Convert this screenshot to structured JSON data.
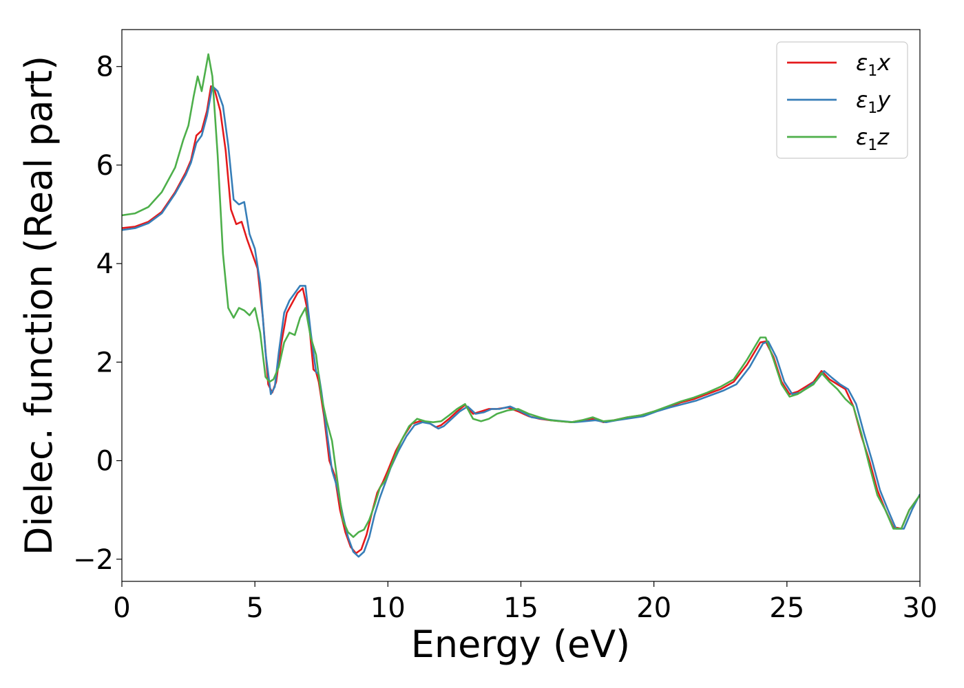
{
  "chart_data": {
    "type": "line",
    "xlabel": "Energy (eV)",
    "ylabel": "Dielec. function (Real part)",
    "xlim": [
      0,
      30
    ],
    "ylim": [
      -2.45,
      8.75
    ],
    "xticks": [
      0,
      5,
      10,
      15,
      20,
      25,
      30
    ],
    "xtick_labels": [
      "0",
      "5",
      "10",
      "15",
      "20",
      "25",
      "30"
    ],
    "yticks": [
      -2,
      0,
      2,
      4,
      6,
      8
    ],
    "ytick_labels": [
      "−2",
      "0",
      "2",
      "4",
      "6",
      "8"
    ],
    "grid": false,
    "legend_position": "top-right",
    "legend": [
      {
        "base": "ε",
        "sub": "1",
        "tail": "x"
      },
      {
        "base": "ε",
        "sub": "1",
        "tail": "y"
      },
      {
        "base": "ε",
        "sub": "1",
        "tail": "z"
      }
    ],
    "series": [
      {
        "name": "ε1x",
        "color": "#e41a1c",
        "x": [
          0,
          0.5,
          1,
          1.5,
          2,
          2.4,
          2.6,
          2.8,
          3.0,
          3.2,
          3.35,
          3.5,
          3.7,
          3.9,
          4.1,
          4.3,
          4.5,
          4.7,
          4.9,
          5.1,
          5.3,
          5.5,
          5.65,
          5.8,
          6.0,
          6.2,
          6.4,
          6.6,
          6.8,
          7.0,
          7.2,
          7.3,
          7.4,
          7.6,
          7.8,
          8.0,
          8.2,
          8.4,
          8.6,
          8.8,
          9.0,
          9.2,
          9.4,
          9.6,
          9.8,
          10.0,
          10.3,
          10.6,
          10.9,
          11.2,
          11.5,
          11.8,
          12.0,
          12.3,
          12.6,
          12.9,
          13.2,
          13.5,
          13.8,
          14.1,
          14.5,
          14.9,
          15.3,
          15.7,
          16.1,
          16.5,
          16.9,
          17.3,
          17.7,
          18.1,
          18.5,
          19.0,
          19.5,
          20.0,
          20.5,
          21.0,
          21.5,
          22.0,
          22.5,
          23.0,
          23.5,
          24.0,
          24.2,
          24.5,
          24.8,
          25.1,
          25.4,
          25.7,
          26.0,
          26.3,
          26.6,
          26.9,
          27.2,
          27.5,
          27.8,
          28.1,
          28.4,
          28.7,
          29.0,
          29.3,
          29.6,
          30.0
        ],
        "y": [
          4.72,
          4.75,
          4.85,
          5.05,
          5.45,
          5.85,
          6.1,
          6.6,
          6.7,
          7.1,
          7.6,
          7.5,
          7.1,
          6.3,
          5.1,
          4.8,
          4.85,
          4.5,
          4.2,
          3.9,
          2.9,
          1.55,
          1.38,
          1.6,
          2.4,
          3.0,
          3.2,
          3.4,
          3.5,
          3.0,
          1.85,
          1.8,
          1.6,
          0.9,
          0.0,
          -0.3,
          -1.0,
          -1.45,
          -1.75,
          -1.88,
          -1.8,
          -1.5,
          -1.05,
          -0.65,
          -0.45,
          -0.2,
          0.2,
          0.5,
          0.75,
          0.8,
          0.78,
          0.68,
          0.72,
          0.85,
          1.0,
          1.13,
          0.95,
          1.0,
          1.05,
          1.05,
          1.08,
          1.0,
          0.9,
          0.85,
          0.82,
          0.8,
          0.78,
          0.82,
          0.85,
          0.78,
          0.82,
          0.88,
          0.92,
          1.0,
          1.08,
          1.18,
          1.25,
          1.35,
          1.45,
          1.6,
          1.95,
          2.4,
          2.42,
          2.1,
          1.6,
          1.35,
          1.4,
          1.5,
          1.6,
          1.82,
          1.65,
          1.55,
          1.45,
          1.1,
          0.5,
          0.0,
          -0.6,
          -1.0,
          -1.35,
          -1.38,
          -1.0,
          -0.7
        ]
      },
      {
        "name": "ε1y",
        "color": "#377eb8",
        "x": [
          0,
          0.5,
          1,
          1.5,
          2,
          2.4,
          2.6,
          2.8,
          3.0,
          3.2,
          3.4,
          3.6,
          3.8,
          4.0,
          4.2,
          4.4,
          4.6,
          4.8,
          5.0,
          5.2,
          5.4,
          5.6,
          5.75,
          5.9,
          6.1,
          6.3,
          6.5,
          6.7,
          6.9,
          7.1,
          7.3,
          7.4,
          7.5,
          7.7,
          7.9,
          8.1,
          8.3,
          8.5,
          8.7,
          8.9,
          9.1,
          9.3,
          9.5,
          9.7,
          9.9,
          10.1,
          10.4,
          10.7,
          11.0,
          11.3,
          11.6,
          11.9,
          12.1,
          12.4,
          12.7,
          13.0,
          13.3,
          13.6,
          13.9,
          14.2,
          14.6,
          15.0,
          15.4,
          15.8,
          16.2,
          16.6,
          17.0,
          17.4,
          17.8,
          18.2,
          18.6,
          19.1,
          19.6,
          20.1,
          20.6,
          21.1,
          21.6,
          22.1,
          22.6,
          23.1,
          23.6,
          24.1,
          24.3,
          24.6,
          24.9,
          25.2,
          25.5,
          25.8,
          26.1,
          26.4,
          26.7,
          27.0,
          27.3,
          27.6,
          27.9,
          28.2,
          28.5,
          28.8,
          29.1,
          29.4,
          29.7,
          30.0
        ],
        "y": [
          4.68,
          4.72,
          4.82,
          5.02,
          5.42,
          5.8,
          6.05,
          6.45,
          6.6,
          7.0,
          7.6,
          7.5,
          7.2,
          6.4,
          5.3,
          5.2,
          5.25,
          4.6,
          4.3,
          3.6,
          2.2,
          1.35,
          1.5,
          2.2,
          3.0,
          3.25,
          3.4,
          3.55,
          3.55,
          2.6,
          1.8,
          1.75,
          1.4,
          0.6,
          -0.2,
          -0.55,
          -1.1,
          -1.55,
          -1.85,
          -1.95,
          -1.85,
          -1.55,
          -1.1,
          -0.75,
          -0.45,
          -0.15,
          0.2,
          0.5,
          0.72,
          0.78,
          0.75,
          0.65,
          0.7,
          0.85,
          1.0,
          1.1,
          0.95,
          0.98,
          1.05,
          1.05,
          1.1,
          1.0,
          0.88,
          0.85,
          0.82,
          0.8,
          0.78,
          0.8,
          0.82,
          0.78,
          0.82,
          0.86,
          0.9,
          1.0,
          1.08,
          1.15,
          1.22,
          1.32,
          1.42,
          1.55,
          1.9,
          2.38,
          2.42,
          2.1,
          1.6,
          1.35,
          1.38,
          1.5,
          1.62,
          1.82,
          1.68,
          1.55,
          1.45,
          1.15,
          0.55,
          0.0,
          -0.6,
          -1.0,
          -1.38,
          -1.38,
          -1.0,
          -0.68
        ]
      },
      {
        "name": "ε1z",
        "color": "#4daf4a",
        "x": [
          0,
          0.5,
          1,
          1.5,
          2,
          2.3,
          2.5,
          2.7,
          2.85,
          3.0,
          3.1,
          3.25,
          3.4,
          3.6,
          3.8,
          4.0,
          4.2,
          4.4,
          4.6,
          4.8,
          5.0,
          5.2,
          5.4,
          5.55,
          5.7,
          5.9,
          6.1,
          6.3,
          6.5,
          6.7,
          6.9,
          7.1,
          7.3,
          7.5,
          7.7,
          7.9,
          8.1,
          8.3,
          8.5,
          8.7,
          8.9,
          9.1,
          9.3,
          9.5,
          9.7,
          9.9,
          10.2,
          10.5,
          10.8,
          11.1,
          11.4,
          11.7,
          12.0,
          12.3,
          12.6,
          12.9,
          13.2,
          13.5,
          13.8,
          14.1,
          14.5,
          14.9,
          15.3,
          15.7,
          16.1,
          16.5,
          16.9,
          17.3,
          17.7,
          18.1,
          18.5,
          19.0,
          19.5,
          20.0,
          20.5,
          21.0,
          21.5,
          22.0,
          22.5,
          23.0,
          23.5,
          24.0,
          24.2,
          24.5,
          24.8,
          25.1,
          25.4,
          25.7,
          26.0,
          26.3,
          26.6,
          26.9,
          27.2,
          27.5,
          27.8,
          28.1,
          28.4,
          28.7,
          29.0,
          29.3,
          29.6,
          30.0
        ],
        "y": [
          4.98,
          5.02,
          5.15,
          5.45,
          5.95,
          6.5,
          6.8,
          7.4,
          7.8,
          7.5,
          7.8,
          8.25,
          7.8,
          6.2,
          4.2,
          3.1,
          2.9,
          3.1,
          3.05,
          2.95,
          3.1,
          2.6,
          1.7,
          1.6,
          1.65,
          1.9,
          2.4,
          2.6,
          2.55,
          2.9,
          3.1,
          2.5,
          2.15,
          1.3,
          0.8,
          0.4,
          -0.4,
          -1.2,
          -1.45,
          -1.55,
          -1.45,
          -1.4,
          -1.2,
          -0.9,
          -0.55,
          -0.4,
          0.0,
          0.4,
          0.7,
          0.85,
          0.8,
          0.78,
          0.8,
          0.92,
          1.05,
          1.15,
          0.85,
          0.8,
          0.85,
          0.95,
          1.02,
          1.05,
          0.95,
          0.88,
          0.82,
          0.8,
          0.78,
          0.82,
          0.88,
          0.8,
          0.82,
          0.88,
          0.92,
          1.0,
          1.1,
          1.2,
          1.28,
          1.38,
          1.5,
          1.65,
          2.05,
          2.5,
          2.5,
          2.05,
          1.55,
          1.3,
          1.35,
          1.45,
          1.55,
          1.78,
          1.6,
          1.45,
          1.25,
          1.1,
          0.55,
          -0.1,
          -0.7,
          -1.0,
          -1.38,
          -1.38,
          -1.0,
          -0.7
        ]
      }
    ]
  }
}
